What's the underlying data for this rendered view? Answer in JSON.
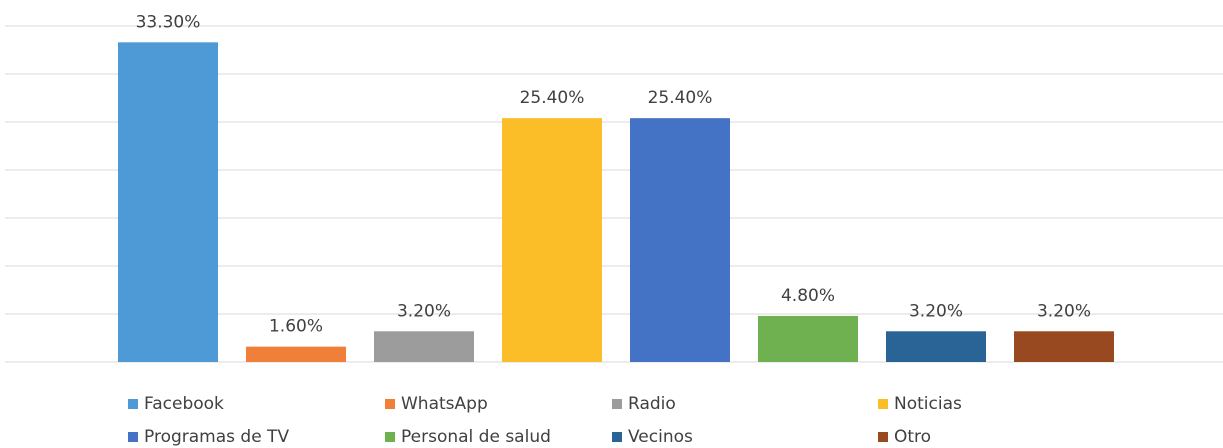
{
  "chart_data": {
    "type": "bar",
    "categories": [
      "Facebook",
      "WhatsApp",
      "Radio",
      "Noticias",
      "Programas de TV",
      "Personal de salud",
      "Vecinos",
      "Otro"
    ],
    "values": [
      33.3,
      1.6,
      3.2,
      25.4,
      25.4,
      4.8,
      3.2,
      3.2
    ],
    "value_labels": [
      "33.30%",
      "1.60%",
      "3.20%",
      "25.40%",
      "25.40%",
      "4.80%",
      "3.20%",
      "3.20%"
    ],
    "colors": [
      "#4e9ad6",
      "#f07f3a",
      "#9c9c9c",
      "#fbbd28",
      "#4472c4",
      "#6fb150",
      "#2a6497",
      "#994920"
    ],
    "ylim": [
      0,
      35
    ],
    "yticks": [
      0,
      5,
      10,
      15,
      20,
      25,
      30,
      35
    ],
    "grid": true,
    "legend": "bottom"
  }
}
